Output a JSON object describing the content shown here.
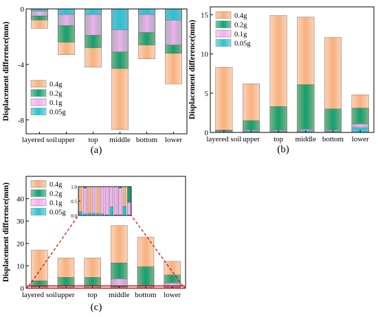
{
  "colors": {
    "g04": "#f7b07e",
    "g02": "#13a06f",
    "g01": "#f2b0ee",
    "g005": "#26c3cf",
    "zoom_box": "#cc0000"
  },
  "legend": [
    "0.4g",
    "0.2g",
    "0.1g",
    "0.05g"
  ],
  "ylabel": "Displacement difference(mm)",
  "categories": [
    "layered soil",
    "upper",
    "top",
    "middle",
    "bottom",
    "lower"
  ],
  "panel_labels": [
    "(a)",
    "(b)",
    "(c)"
  ],
  "chart_data": [
    {
      "panel": "(a)",
      "type": "bar",
      "ylabel": "Displacement difference(mm)",
      "ylim": [
        -9,
        0
      ],
      "yticks": [
        "-8",
        "-4",
        "0"
      ],
      "categories": [
        "layered soil",
        "upper",
        "top",
        "middle",
        "bottom",
        "lower"
      ],
      "series": [
        {
          "name": "0.4g",
          "values": [
            -1.4,
            -3.3,
            -4.2,
            -8.7,
            -3.6,
            -5.4
          ]
        },
        {
          "name": "0.2g",
          "values": [
            -0.8,
            -2.4,
            -2.8,
            -4.3,
            -2.6,
            -3.2
          ]
        },
        {
          "name": "0.1g",
          "values": [
            -0.5,
            -1.2,
            -1.9,
            -3.1,
            -1.7,
            -2.6
          ]
        },
        {
          "name": "0.05g",
          "values": [
            -0.15,
            -0.4,
            -0.4,
            -1.5,
            -0.4,
            -0.8
          ]
        }
      ],
      "legend_placement": "bottom-left"
    },
    {
      "panel": "(b)",
      "type": "bar",
      "ylabel": "Displacement difference(mm)",
      "ylim": [
        0,
        16
      ],
      "yticks": [
        "0",
        "5",
        "10",
        "15"
      ],
      "categories": [
        "layered soil",
        "upper",
        "top",
        "middle",
        "bottom",
        "lower"
      ],
      "series": [
        {
          "name": "0.4g",
          "values": [
            8.3,
            6.2,
            14.9,
            14.7,
            12.1,
            4.8
          ]
        },
        {
          "name": "0.2g",
          "values": [
            0.3,
            1.5,
            3.3,
            6.1,
            3.0,
            3.1
          ]
        },
        {
          "name": "0.1g",
          "values": [
            0.2,
            0.3,
            0.3,
            0.4,
            0.3,
            1.1
          ]
        },
        {
          "name": "0.05g",
          "values": [
            0.1,
            0.15,
            0.15,
            0.2,
            0.15,
            0.6
          ]
        }
      ],
      "legend_placement": "top-left"
    },
    {
      "panel": "(c)",
      "type": "bar",
      "ylabel": "Displacement difference(mm)",
      "ylim": [
        0,
        50
      ],
      "yticks": [
        "0",
        "10",
        "20",
        "30",
        "40"
      ],
      "categories": [
        "layered soil",
        "upper",
        "top",
        "middle",
        "bottom",
        "lower"
      ],
      "series": [
        {
          "name": "0.4g",
          "values": [
            17.0,
            13.5,
            13.5,
            28.0,
            22.8,
            12.0
          ]
        },
        {
          "name": "0.2g",
          "values": [
            3.3,
            4.8,
            4.8,
            11.3,
            9.6,
            5.9
          ]
        },
        {
          "name": "0.1g",
          "values": [
            0.7,
            1.2,
            1.2,
            4.2,
            1.2,
            2.4
          ]
        },
        {
          "name": "0.05g",
          "values": [
            0.15,
            0.3,
            0.3,
            0.7,
            0.3,
            0.45
          ]
        }
      ],
      "legend_placement": "top-left",
      "inset": {
        "ylim": [
          0,
          1.0
        ],
        "yticks": [
          "0.0",
          "0.5",
          "1.0"
        ],
        "series": [
          {
            "name": "0.4g",
            "values": [
              1,
              1,
              1,
              1,
              1,
              1,
              1,
              1,
              1,
              1,
              1,
              1
            ]
          },
          {
            "name": "0.2g",
            "values": [
              0.12,
              1,
              0.08,
              1,
              0.08,
              1,
              1,
              1,
              1,
              1,
              0.33,
              1
            ]
          },
          {
            "name": "0.1g",
            "values": [
              0.12,
              0.95,
              0.08,
              1,
              0.08,
              1,
              1,
              1,
              1,
              0.95,
              0.33,
              0.45
            ]
          },
          {
            "name": "0.05g",
            "values": [
              0.12,
              0.05,
              0.05,
              0.08,
              0.05,
              0.05,
              0.02,
              0.3,
              0.02,
              0.02,
              0.3,
              0.02
            ]
          }
        ]
      }
    }
  ]
}
